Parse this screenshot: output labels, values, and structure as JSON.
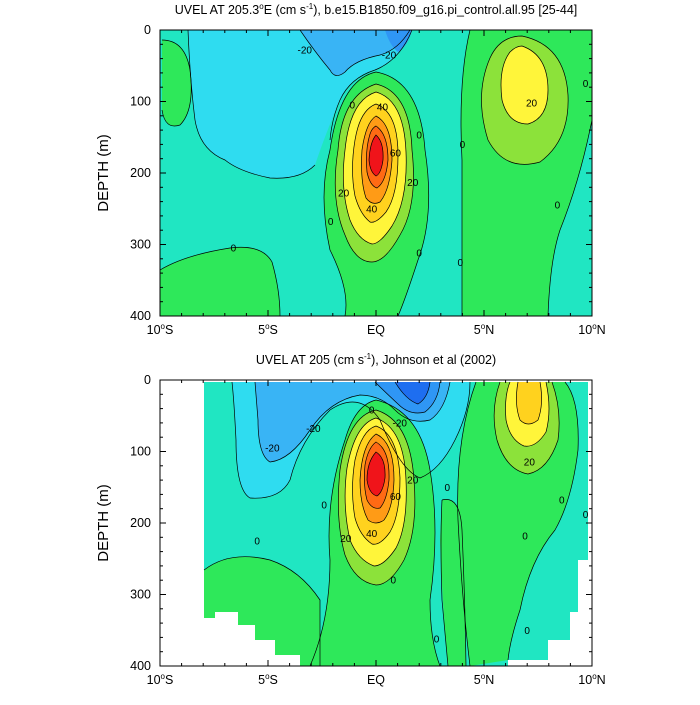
{
  "colors": {
    "neg40": "#1e6ef0",
    "neg30": "#2f96f5",
    "neg20": "#39b4f5",
    "neg10": "#2fdcf0",
    "zero_to_ten": "#20e6c2",
    "ten_to_twenty": "#2ee85a",
    "twenty_to_thirty": "#8ce23a",
    "thirty_to_forty": "#fff53a",
    "forty_to_fifty": "#ffd21e",
    "fifty_to_sixty": "#ff9b16",
    "sixty_to_seventy": "#ff6a14",
    "seventy_plus": "#f0141a",
    "no_data": "#ffffff"
  },
  "chart_data": [
    {
      "type": "contour",
      "title_main": "UVEL AT 205.3",
      "title_sup_o": "o",
      "title_unit_open": "E (cm s",
      "title_unit_sup": "-1",
      "title_rest": "), b.e15.B1850.f09_g16.pi_control.all.95 [25-44]",
      "ylabel": "DEPTH (m)",
      "xlabel": "",
      "x_range_deg": [
        -10,
        10
      ],
      "y_range_m": [
        0,
        400
      ],
      "y_reversed": true,
      "x_tick_values": [
        -10,
        -5,
        0,
        5,
        10
      ],
      "x_tick_labels": [
        {
          "num": "10",
          "deg": "o",
          "hem": "S"
        },
        {
          "num": "5",
          "deg": "o",
          "hem": "S"
        },
        {
          "num": "EQ",
          "deg": "",
          "hem": ""
        },
        {
          "num": "5",
          "deg": "o",
          "hem": "N"
        },
        {
          "num": "10",
          "deg": "o",
          "hem": "N"
        }
      ],
      "y_ticks": [
        0,
        100,
        200,
        300,
        400
      ],
      "contour_interval": 10,
      "contour_labels": [
        {
          "text": "-20",
          "lat": -3.3,
          "depth": 28
        },
        {
          "text": "-20",
          "lat": 0.6,
          "depth": 35
        },
        {
          "text": "0",
          "lat": -1.1,
          "depth": 105
        },
        {
          "text": "40",
          "lat": 0.3,
          "depth": 108
        },
        {
          "text": "0",
          "lat": 2.0,
          "depth": 147
        },
        {
          "text": "60",
          "lat": 0.9,
          "depth": 172
        },
        {
          "text": "20",
          "lat": 1.7,
          "depth": 213
        },
        {
          "text": "20",
          "lat": -1.5,
          "depth": 228
        },
        {
          "text": "40",
          "lat": -0.2,
          "depth": 250
        },
        {
          "text": "0",
          "lat": -2.1,
          "depth": 268
        },
        {
          "text": "0",
          "lat": -6.6,
          "depth": 305
        },
        {
          "text": "0",
          "lat": 2.0,
          "depth": 312
        },
        {
          "text": "0",
          "lat": 3.9,
          "depth": 325
        },
        {
          "text": "0",
          "lat": 4.0,
          "depth": 160
        },
        {
          "text": "20",
          "lat": 7.2,
          "depth": 102
        },
        {
          "text": "0",
          "lat": 9.7,
          "depth": 75
        },
        {
          "text": "0",
          "lat": 8.4,
          "depth": 245
        }
      ]
    },
    {
      "type": "contour",
      "title_main": "UVEL AT 205 (cm s",
      "title_unit_sup": "-1",
      "title_rest": "), Johnson et al (2002)",
      "ylabel": "DEPTH (m)",
      "xlabel": "",
      "x_range_deg": [
        -10,
        10
      ],
      "y_range_m": [
        0,
        400
      ],
      "y_reversed": true,
      "x_tick_values": [
        -10,
        -5,
        0,
        5,
        10
      ],
      "x_tick_labels": [
        {
          "num": "10",
          "deg": "o",
          "hem": "S"
        },
        {
          "num": "5",
          "deg": "o",
          "hem": "S"
        },
        {
          "num": "EQ",
          "deg": "",
          "hem": ""
        },
        {
          "num": "5",
          "deg": "o",
          "hem": "N"
        },
        {
          "num": "10",
          "deg": "o",
          "hem": "N"
        }
      ],
      "y_ticks": [
        0,
        100,
        200,
        300,
        400
      ],
      "contour_interval": 10,
      "contour_labels": [
        {
          "text": "0",
          "lat": -0.2,
          "depth": 42
        },
        {
          "text": "-20",
          "lat": 1.1,
          "depth": 60
        },
        {
          "text": "-20",
          "lat": -4.8,
          "depth": 95
        },
        {
          "text": "-20",
          "lat": -2.9,
          "depth": 68
        },
        {
          "text": "20",
          "lat": 1.7,
          "depth": 140
        },
        {
          "text": "60",
          "lat": 0.9,
          "depth": 163
        },
        {
          "text": "0",
          "lat": 3.3,
          "depth": 150
        },
        {
          "text": "20",
          "lat": 7.1,
          "depth": 115
        },
        {
          "text": "0",
          "lat": -2.4,
          "depth": 175
        },
        {
          "text": "40",
          "lat": -0.2,
          "depth": 215
        },
        {
          "text": "20",
          "lat": -1.4,
          "depth": 222
        },
        {
          "text": "0",
          "lat": -5.5,
          "depth": 225
        },
        {
          "text": "0",
          "lat": 6.9,
          "depth": 218
        },
        {
          "text": "0",
          "lat": 8.6,
          "depth": 168
        },
        {
          "text": "0",
          "lat": 9.7,
          "depth": 188
        },
        {
          "text": "0",
          "lat": 0.8,
          "depth": 280
        },
        {
          "text": "0",
          "lat": 2.8,
          "depth": 362
        },
        {
          "text": "0",
          "lat": 7.0,
          "depth": 350
        }
      ]
    }
  ]
}
